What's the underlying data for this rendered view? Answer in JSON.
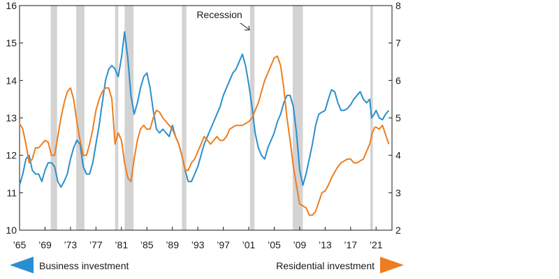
{
  "chart_data": {
    "type": "line",
    "title": "",
    "xlabel": "",
    "x_range": [
      1965,
      2023.5
    ],
    "x_tick_labels": [
      "’65",
      "’69",
      "’73",
      "’77",
      "’81",
      "’85",
      "’89",
      "’93",
      "’97",
      "’01",
      "’05",
      "’09",
      "’13",
      "’17",
      "’21"
    ],
    "x_tick_values": [
      1965,
      1969,
      1973,
      1977,
      1981,
      1985,
      1989,
      1993,
      1997,
      2001,
      2005,
      2009,
      2013,
      2017,
      2021
    ],
    "left_axis": {
      "min": 10,
      "max": 16,
      "ticks": [
        10,
        11,
        12,
        13,
        14,
        15,
        16
      ]
    },
    "right_axis": {
      "min": 2,
      "max": 8,
      "ticks": [
        2,
        3,
        4,
        5,
        6,
        7,
        8
      ]
    },
    "grid": false,
    "recessions": [
      [
        1969.9,
        1970.9
      ],
      [
        1973.9,
        1975.2
      ],
      [
        1980.0,
        1980.5
      ],
      [
        1981.5,
        1982.9
      ],
      [
        1990.5,
        1991.2
      ],
      [
        2001.2,
        2001.9
      ],
      [
        2007.9,
        2009.5
      ],
      [
        2020.1,
        2020.5
      ]
    ],
    "annotation": {
      "text": "Recession",
      "x": 1995.5,
      "y": 15.95
    },
    "series": [
      {
        "name": "Business investment",
        "axis": "left",
        "color": "#2a8fce",
        "legend_position": "bottom-left",
        "points": [
          [
            1965.0,
            11.2
          ],
          [
            1965.5,
            11.5
          ],
          [
            1966.0,
            11.9
          ],
          [
            1966.5,
            12.0
          ],
          [
            1967.0,
            11.6
          ],
          [
            1967.5,
            11.5
          ],
          [
            1968.0,
            11.5
          ],
          [
            1968.5,
            11.3
          ],
          [
            1969.0,
            11.6
          ],
          [
            1969.5,
            11.8
          ],
          [
            1970.0,
            11.8
          ],
          [
            1970.5,
            11.7
          ],
          [
            1971.0,
            11.3
          ],
          [
            1971.5,
            11.15
          ],
          [
            1972.0,
            11.3
          ],
          [
            1972.5,
            11.5
          ],
          [
            1973.0,
            11.9
          ],
          [
            1973.5,
            12.2
          ],
          [
            1974.0,
            12.4
          ],
          [
            1974.5,
            12.3
          ],
          [
            1975.0,
            11.7
          ],
          [
            1975.5,
            11.5
          ],
          [
            1976.0,
            11.5
          ],
          [
            1976.5,
            11.8
          ],
          [
            1977.0,
            12.3
          ],
          [
            1977.5,
            12.8
          ],
          [
            1978.0,
            13.4
          ],
          [
            1978.5,
            14.0
          ],
          [
            1979.0,
            14.3
          ],
          [
            1979.5,
            14.4
          ],
          [
            1980.0,
            14.3
          ],
          [
            1980.5,
            14.1
          ],
          [
            1981.0,
            14.6
          ],
          [
            1981.5,
            15.3
          ],
          [
            1982.0,
            14.6
          ],
          [
            1982.5,
            13.6
          ],
          [
            1983.0,
            13.1
          ],
          [
            1983.5,
            13.4
          ],
          [
            1984.0,
            13.8
          ],
          [
            1984.5,
            14.1
          ],
          [
            1985.0,
            14.2
          ],
          [
            1985.5,
            13.8
          ],
          [
            1986.0,
            13.2
          ],
          [
            1986.5,
            12.7
          ],
          [
            1987.0,
            12.6
          ],
          [
            1987.5,
            12.7
          ],
          [
            1988.0,
            12.6
          ],
          [
            1988.5,
            12.5
          ],
          [
            1989.0,
            12.8
          ],
          [
            1989.5,
            12.5
          ],
          [
            1990.0,
            12.3
          ],
          [
            1990.5,
            12.0
          ],
          [
            1991.0,
            11.6
          ],
          [
            1991.5,
            11.3
          ],
          [
            1992.0,
            11.3
          ],
          [
            1992.5,
            11.5
          ],
          [
            1993.0,
            11.7
          ],
          [
            1993.5,
            12.0
          ],
          [
            1994.0,
            12.3
          ],
          [
            1994.5,
            12.5
          ],
          [
            1995.0,
            12.7
          ],
          [
            1995.5,
            12.9
          ],
          [
            1996.0,
            13.1
          ],
          [
            1996.5,
            13.3
          ],
          [
            1997.0,
            13.6
          ],
          [
            1997.5,
            13.8
          ],
          [
            1998.0,
            14.0
          ],
          [
            1998.5,
            14.2
          ],
          [
            1999.0,
            14.3
          ],
          [
            1999.5,
            14.5
          ],
          [
            2000.0,
            14.7
          ],
          [
            2000.5,
            14.4
          ],
          [
            2001.0,
            13.9
          ],
          [
            2001.5,
            13.3
          ],
          [
            2002.0,
            12.6
          ],
          [
            2002.5,
            12.2
          ],
          [
            2003.0,
            12.0
          ],
          [
            2003.5,
            11.9
          ],
          [
            2004.0,
            12.2
          ],
          [
            2004.5,
            12.4
          ],
          [
            2005.0,
            12.6
          ],
          [
            2005.5,
            12.9
          ],
          [
            2006.0,
            13.1
          ],
          [
            2006.5,
            13.4
          ],
          [
            2007.0,
            13.6
          ],
          [
            2007.5,
            13.6
          ],
          [
            2008.0,
            13.3
          ],
          [
            2008.5,
            12.6
          ],
          [
            2009.0,
            11.6
          ],
          [
            2009.5,
            11.2
          ],
          [
            2010.0,
            11.5
          ],
          [
            2010.5,
            11.9
          ],
          [
            2011.0,
            12.3
          ],
          [
            2011.5,
            12.8
          ],
          [
            2012.0,
            13.1
          ],
          [
            2012.5,
            13.15
          ],
          [
            2013.0,
            13.2
          ],
          [
            2013.5,
            13.5
          ],
          [
            2014.0,
            13.75
          ],
          [
            2014.5,
            13.7
          ],
          [
            2015.0,
            13.4
          ],
          [
            2015.5,
            13.2
          ],
          [
            2016.0,
            13.2
          ],
          [
            2016.5,
            13.25
          ],
          [
            2017.0,
            13.35
          ],
          [
            2017.5,
            13.5
          ],
          [
            2018.0,
            13.6
          ],
          [
            2018.5,
            13.7
          ],
          [
            2019.0,
            13.5
          ],
          [
            2019.5,
            13.4
          ],
          [
            2020.0,
            13.5
          ],
          [
            2020.3,
            13.0
          ],
          [
            2020.7,
            13.1
          ],
          [
            2021.0,
            13.2
          ],
          [
            2021.5,
            13.0
          ],
          [
            2022.0,
            12.95
          ],
          [
            2022.5,
            13.1
          ],
          [
            2023.0,
            13.2
          ]
        ]
      },
      {
        "name": "Residential investment",
        "axis": "right",
        "color": "#ee7d1f",
        "legend_position": "bottom-right",
        "points": [
          [
            1965.0,
            4.85
          ],
          [
            1965.5,
            4.7
          ],
          [
            1966.0,
            4.3
          ],
          [
            1966.5,
            3.8
          ],
          [
            1967.0,
            3.9
          ],
          [
            1967.5,
            4.2
          ],
          [
            1968.0,
            4.2
          ],
          [
            1968.5,
            4.3
          ],
          [
            1969.0,
            4.4
          ],
          [
            1969.5,
            4.35
          ],
          [
            1970.0,
            4.0
          ],
          [
            1970.5,
            4.0
          ],
          [
            1971.0,
            4.5
          ],
          [
            1971.5,
            5.0
          ],
          [
            1972.0,
            5.4
          ],
          [
            1972.5,
            5.7
          ],
          [
            1973.0,
            5.8
          ],
          [
            1973.5,
            5.5
          ],
          [
            1974.0,
            4.9
          ],
          [
            1974.5,
            4.4
          ],
          [
            1975.0,
            4.0
          ],
          [
            1975.5,
            4.0
          ],
          [
            1976.0,
            4.3
          ],
          [
            1976.5,
            4.7
          ],
          [
            1977.0,
            5.2
          ],
          [
            1977.5,
            5.5
          ],
          [
            1978.0,
            5.7
          ],
          [
            1978.5,
            5.8
          ],
          [
            1979.0,
            5.8
          ],
          [
            1979.5,
            5.5
          ],
          [
            1980.0,
            4.3
          ],
          [
            1980.5,
            4.6
          ],
          [
            1981.0,
            4.4
          ],
          [
            1981.5,
            3.8
          ],
          [
            1982.0,
            3.4
          ],
          [
            1982.5,
            3.3
          ],
          [
            1983.0,
            3.9
          ],
          [
            1983.5,
            4.4
          ],
          [
            1984.0,
            4.7
          ],
          [
            1984.5,
            4.8
          ],
          [
            1985.0,
            4.7
          ],
          [
            1985.5,
            4.7
          ],
          [
            1986.0,
            5.0
          ],
          [
            1986.5,
            5.2
          ],
          [
            1987.0,
            5.15
          ],
          [
            1987.5,
            5.0
          ],
          [
            1988.0,
            4.9
          ],
          [
            1988.5,
            4.8
          ],
          [
            1989.0,
            4.7
          ],
          [
            1989.5,
            4.5
          ],
          [
            1990.0,
            4.3
          ],
          [
            1990.5,
            4.0
          ],
          [
            1991.0,
            3.6
          ],
          [
            1991.5,
            3.6
          ],
          [
            1992.0,
            3.8
          ],
          [
            1992.5,
            3.9
          ],
          [
            1993.0,
            4.1
          ],
          [
            1993.5,
            4.3
          ],
          [
            1994.0,
            4.5
          ],
          [
            1994.5,
            4.4
          ],
          [
            1995.0,
            4.3
          ],
          [
            1995.5,
            4.4
          ],
          [
            1996.0,
            4.5
          ],
          [
            1996.5,
            4.4
          ],
          [
            1997.0,
            4.4
          ],
          [
            1997.5,
            4.5
          ],
          [
            1998.0,
            4.7
          ],
          [
            1998.5,
            4.75
          ],
          [
            1999.0,
            4.8
          ],
          [
            1999.5,
            4.8
          ],
          [
            2000.0,
            4.8
          ],
          [
            2000.5,
            4.85
          ],
          [
            2001.0,
            4.9
          ],
          [
            2001.5,
            5.0
          ],
          [
            2002.0,
            5.2
          ],
          [
            2002.5,
            5.4
          ],
          [
            2003.0,
            5.7
          ],
          [
            2003.5,
            6.0
          ],
          [
            2004.0,
            6.2
          ],
          [
            2004.5,
            6.4
          ],
          [
            2005.0,
            6.6
          ],
          [
            2005.5,
            6.65
          ],
          [
            2006.0,
            6.4
          ],
          [
            2006.5,
            5.8
          ],
          [
            2007.0,
            5.0
          ],
          [
            2007.5,
            4.4
          ],
          [
            2008.0,
            3.7
          ],
          [
            2008.5,
            3.2
          ],
          [
            2009.0,
            2.7
          ],
          [
            2009.5,
            2.65
          ],
          [
            2010.0,
            2.6
          ],
          [
            2010.5,
            2.4
          ],
          [
            2011.0,
            2.4
          ],
          [
            2011.5,
            2.5
          ],
          [
            2012.0,
            2.75
          ],
          [
            2012.5,
            3.0
          ],
          [
            2013.0,
            3.05
          ],
          [
            2013.5,
            3.2
          ],
          [
            2014.0,
            3.4
          ],
          [
            2014.5,
            3.55
          ],
          [
            2015.0,
            3.7
          ],
          [
            2015.5,
            3.8
          ],
          [
            2016.0,
            3.85
          ],
          [
            2016.5,
            3.9
          ],
          [
            2017.0,
            3.9
          ],
          [
            2017.5,
            3.8
          ],
          [
            2018.0,
            3.8
          ],
          [
            2018.5,
            3.85
          ],
          [
            2019.0,
            3.9
          ],
          [
            2019.5,
            4.1
          ],
          [
            2020.0,
            4.3
          ],
          [
            2020.4,
            4.6
          ],
          [
            2020.8,
            4.75
          ],
          [
            2021.0,
            4.75
          ],
          [
            2021.5,
            4.7
          ],
          [
            2022.0,
            4.8
          ],
          [
            2022.5,
            4.55
          ],
          [
            2023.0,
            4.3
          ]
        ]
      }
    ]
  }
}
